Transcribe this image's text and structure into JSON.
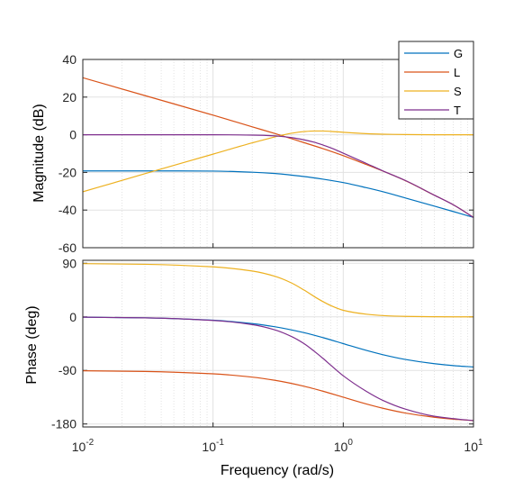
{
  "chart_data": {
    "type": "line",
    "title": "",
    "xlabel": "Frequency  (rad/s)",
    "xscale": "log",
    "xlim": [
      0.01,
      10
    ],
    "xticks": [
      {
        "base": "10",
        "exp": "-2"
      },
      {
        "base": "10",
        "exp": "-1"
      },
      {
        "base": "10",
        "exp": "0"
      },
      {
        "base": "10",
        "exp": "1"
      }
    ],
    "grid": true,
    "legend": {
      "position": "top-right",
      "entries": [
        "G",
        "L",
        "S",
        "T"
      ]
    },
    "colors": {
      "G": "#0072bd",
      "L": "#d95319",
      "S": "#edb120",
      "T": "#7e2f8e"
    },
    "panels": [
      {
        "ylabel": "Magnitude (dB)",
        "ylim": [
          -60,
          40
        ],
        "yticks": [
          "40",
          "20",
          "0",
          "-20",
          "-40",
          "-60"
        ],
        "series": [
          {
            "name": "G",
            "x": [
              0.01,
              0.03,
              0.1,
              0.2,
              0.3,
              0.5,
              0.7,
              1,
              1.5,
              2,
              3,
              5,
              7,
              10
            ],
            "y": [
              -19.2,
              -19.2,
              -19.3,
              -19.9,
              -20.6,
              -22.2,
              -23.6,
              -25.4,
              -28.1,
              -30.2,
              -33.6,
              -37.9,
              -40.8,
              -43.9
            ]
          },
          {
            "name": "L",
            "x": [
              0.01,
              0.03,
              0.1,
              0.2,
              0.3,
              0.5,
              0.7,
              1,
              1.5,
              2,
              3,
              5,
              7,
              10
            ],
            "y": [
              30.3,
              20.8,
              10.4,
              4.2,
              0.6,
              -4.2,
              -7.4,
              -11.1,
              -15.8,
              -19.2,
              -24.4,
              -32.1,
              -37.2,
              -43.9
            ]
          },
          {
            "name": "S",
            "x": [
              0.01,
              0.03,
              0.1,
              0.2,
              0.3,
              0.4,
              0.5,
              0.6,
              0.7,
              0.8,
              1,
              1.5,
              2,
              3,
              5,
              10
            ],
            "y": [
              -30.3,
              -20.7,
              -10.3,
              -4.3,
              -1.1,
              0.8,
              1.7,
              2.0,
              2.0,
              1.8,
              1.3,
              0.6,
              0.3,
              0.1,
              0.0,
              0.0
            ]
          },
          {
            "name": "T",
            "x": [
              0.01,
              0.03,
              0.1,
              0.2,
              0.3,
              0.4,
              0.5,
              0.6,
              0.7,
              0.8,
              1,
              1.5,
              2,
              3,
              5,
              7,
              10
            ],
            "y": [
              0.0,
              0.0,
              0.0,
              -0.2,
              -0.6,
              -1.5,
              -2.7,
              -4.0,
              -5.5,
              -6.9,
              -9.8,
              -15.2,
              -19.1,
              -24.3,
              -32.1,
              -37.2,
              -43.9
            ]
          }
        ]
      },
      {
        "ylabel": "Phase (deg)",
        "ylim": [
          -185,
          95
        ],
        "yticks": [
          "90",
          "0",
          "-90",
          "-180"
        ],
        "series": [
          {
            "name": "G",
            "x": [
              0.01,
              0.03,
              0.1,
              0.2,
              0.3,
              0.5,
              0.7,
              1,
              1.5,
              2,
              3,
              5,
              7,
              10
            ],
            "y": [
              -0.6,
              -1.7,
              -5.7,
              -11.3,
              -16.7,
              -26.6,
              -35.0,
              -45.0,
              -56.3,
              -63.4,
              -71.6,
              -78.7,
              -81.9,
              -84.3
            ]
          },
          {
            "name": "L",
            "x": [
              0.01,
              0.03,
              0.1,
              0.2,
              0.3,
              0.5,
              0.7,
              1,
              1.5,
              2,
              3,
              5,
              7,
              10
            ],
            "y": [
              -90.6,
              -91.7,
              -95.7,
              -101.3,
              -106.7,
              -116.6,
              -125.0,
              -135.0,
              -146.3,
              -153.4,
              -161.6,
              -168.7,
              -171.9,
              -174.3
            ]
          },
          {
            "name": "S",
            "x": [
              0.01,
              0.03,
              0.1,
              0.2,
              0.3,
              0.4,
              0.5,
              0.6,
              0.7,
              0.8,
              1,
              1.5,
              2,
              3,
              5,
              10
            ],
            "y": [
              89.4,
              88.3,
              84.0,
              77.0,
              68.0,
              57.0,
              45.0,
              34.0,
              25.5,
              19.0,
              11.0,
              4.5,
              2.2,
              0.8,
              0.2,
              0.0
            ]
          },
          {
            "name": "T",
            "x": [
              0.01,
              0.03,
              0.1,
              0.2,
              0.3,
              0.4,
              0.5,
              0.6,
              0.7,
              0.8,
              1,
              1.5,
              2,
              3,
              5,
              7,
              10
            ],
            "y": [
              -0.6,
              -1.7,
              -6.0,
              -13.0,
              -22.0,
              -33.0,
              -45.0,
              -58.0,
              -70.0,
              -81.0,
              -99.0,
              -125.0,
              -140.0,
              -155.0,
              -167.0,
              -171.0,
              -174.3
            ]
          }
        ]
      }
    ]
  }
}
